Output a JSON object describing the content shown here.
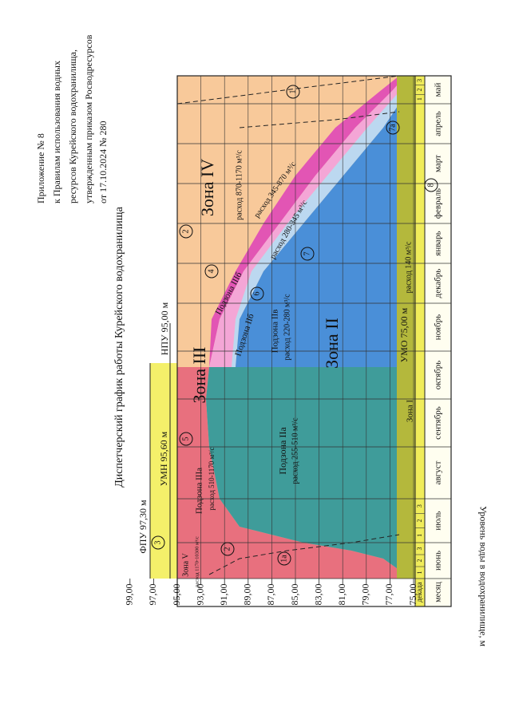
{
  "header": {
    "lines": [
      "Приложение № 8",
      "к Правилам использования водных",
      "ресурсов Курейского водохранилища,",
      "утвержденным приказом Росводресурсов",
      "от 17.10.2024 № 280"
    ]
  },
  "title": "Диспетчерский график работы Курейского водохранилища",
  "y_axis_label": "Уровень воды в водохранилище, м",
  "levels": [
    "99,00",
    "97,00",
    "95,00",
    "93,00",
    "91,00",
    "89,00",
    "87,00",
    "85,00",
    "83,00",
    "81,00",
    "79,00",
    "77,00",
    "75,00"
  ],
  "marks": {
    "fpu": "ФПУ 97,30 м",
    "umn": "УМН 95,60 м",
    "npu": "НПУ 95,00 м",
    "umo": "УМО 75,00 м"
  },
  "labels": [
    "Зона V",
    "расход 1170-10300 м³/с",
    "Подзона IIIа",
    "расход 510-1170 м³/с",
    "Зона III",
    "Зона IV",
    "расход 870-1170 м³/с",
    "Подзона IIIб",
    "Подзона IIб",
    "расход 345-870 м³/с",
    "расход 280-345 м³/с",
    "Подзона IIв",
    "расход 220-280 м³/с",
    "Подзона IIа",
    "расход 255-510 м³/с",
    "Зона II",
    "Зона I",
    "расход 140 м³/с"
  ],
  "markers": [
    "1",
    "2",
    "3",
    "4",
    "5",
    "6",
    "7",
    "8",
    "1а",
    "2",
    "7а"
  ],
  "table": {
    "decade_header": "декада",
    "month_header": "месяц",
    "months": [
      "июнь",
      "июль",
      "август",
      "сентябрь",
      "октябрь",
      "ноябрь",
      "декабрь",
      "январь",
      "февраль",
      "март",
      "апрель",
      "май"
    ],
    "decades": [
      "1",
      "2",
      "3"
    ]
  }
}
